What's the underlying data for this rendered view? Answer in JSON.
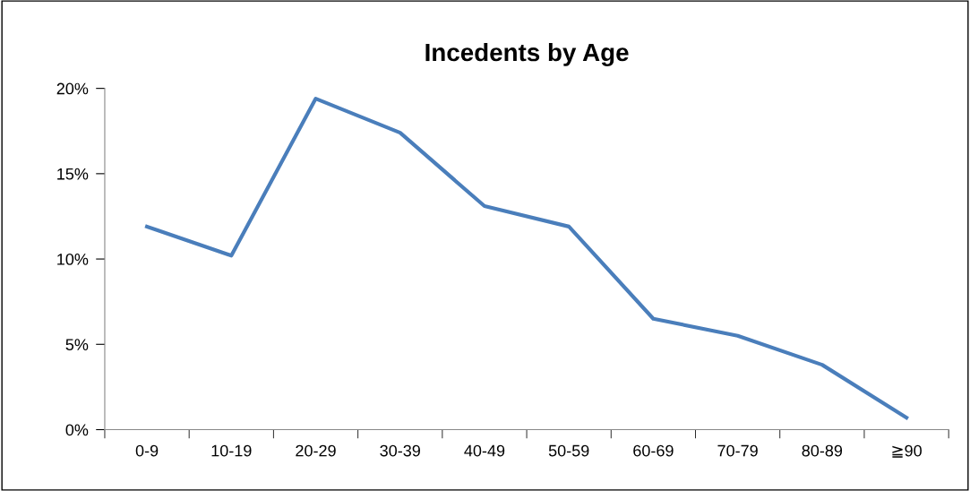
{
  "chart_data": {
    "type": "line",
    "title": "Incedents by Age",
    "categories": [
      "0-9",
      "10-19",
      "20-29",
      "30-39",
      "40-49",
      "50-59",
      "60-69",
      "70-79",
      "80-89",
      "≧90"
    ],
    "series": [
      {
        "color": "#4a7ebb",
        "values": [
          11.9,
          10.2,
          19.4,
          17.4,
          13.1,
          11.9,
          6.5,
          5.5,
          3.8,
          0.7
        ]
      }
    ],
    "ylim": [
      0,
      20
    ],
    "yticks": [
      {
        "value": 0,
        "label": "0%"
      },
      {
        "value": 5,
        "label": "5%"
      },
      {
        "value": 10,
        "label": "10%"
      },
      {
        "value": 15,
        "label": "15%"
      },
      {
        "value": 20,
        "label": "20%"
      }
    ],
    "grid": false,
    "marker": "none",
    "line_style": "solid"
  }
}
